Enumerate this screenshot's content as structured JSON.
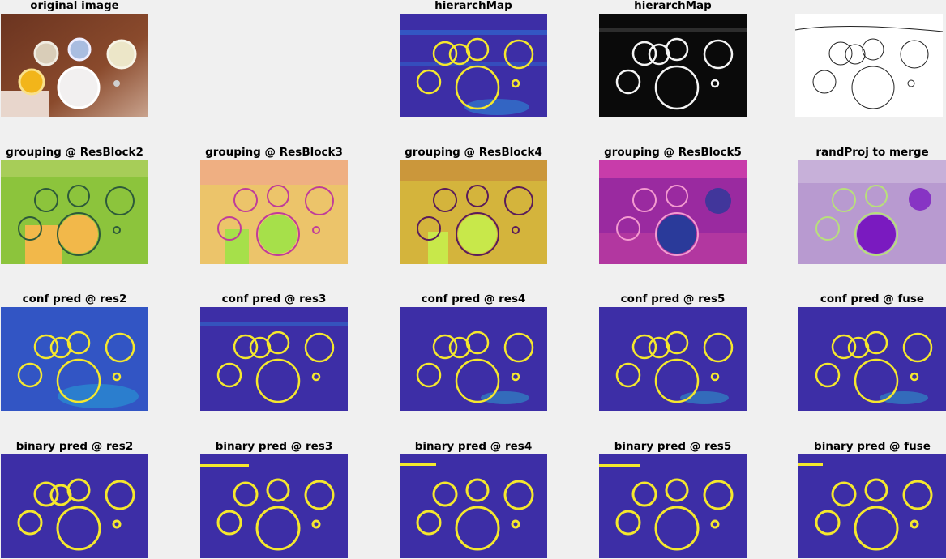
{
  "figure": {
    "panels": [
      {
        "id": "original",
        "title": "original image",
        "kind": "photo"
      },
      {
        "id": "empty",
        "title": "",
        "kind": "empty"
      },
      {
        "id": "hier_color",
        "title": "hierarchMap",
        "kind": "heat-color"
      },
      {
        "id": "hier_gray",
        "title": "hierarchMap",
        "kind": "heat-gray"
      },
      {
        "id": "edges",
        "title": "",
        "kind": "edges"
      },
      {
        "id": "grp2",
        "title": "grouping @ ResBlock2",
        "kind": "grouping-green"
      },
      {
        "id": "grp3",
        "title": "grouping @ ResBlock3",
        "kind": "grouping-pink"
      },
      {
        "id": "grp4",
        "title": "grouping @ ResBlock4",
        "kind": "grouping-yellow"
      },
      {
        "id": "grp5",
        "title": "grouping @ ResBlock5",
        "kind": "grouping-magenta"
      },
      {
        "id": "rand",
        "title": "randProj to merge",
        "kind": "grouping-lilac"
      },
      {
        "id": "conf2",
        "title": "conf pred @ res2",
        "kind": "conf"
      },
      {
        "id": "conf3",
        "title": "conf pred @ res3",
        "kind": "conf"
      },
      {
        "id": "conf4",
        "title": "conf pred @ res4",
        "kind": "conf"
      },
      {
        "id": "conf5",
        "title": "conf pred @ res5",
        "kind": "conf"
      },
      {
        "id": "conff",
        "title": "conf pred @ fuse",
        "kind": "conf"
      },
      {
        "id": "bin2",
        "title": "binary pred @ res2",
        "kind": "binary"
      },
      {
        "id": "bin3",
        "title": "binary pred @ res3",
        "kind": "binary"
      },
      {
        "id": "bin4",
        "title": "binary pred @ res4",
        "kind": "binary"
      },
      {
        "id": "bin5",
        "title": "binary pred @ res5",
        "kind": "binary"
      },
      {
        "id": "binf",
        "title": "binary pred @ fuse",
        "kind": "binary"
      }
    ]
  },
  "colors": {
    "page_bg": "#f0f0f0",
    "parula_bg": "#3d2ea6",
    "parula_mid": "#1f8fe0",
    "parula_hi": "#f5e82d",
    "photo_table": "#7a3b22",
    "green_bg": "#8cc43c",
    "pink_bg": "#e8c46a",
    "yellow_bg": "#c8a43c",
    "magenta_bg": "#9a2aa0",
    "lilac_bg": "#b08ec8"
  }
}
